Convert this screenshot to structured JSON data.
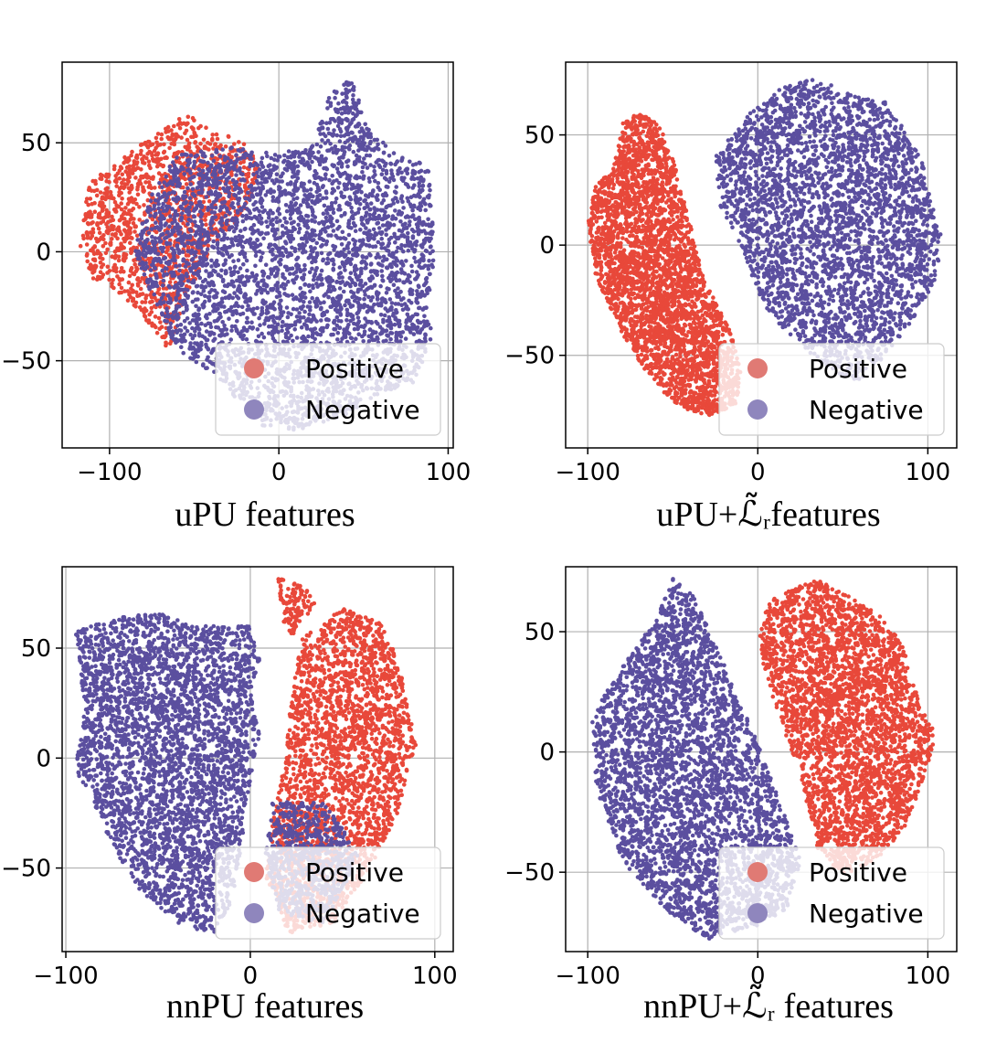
{
  "figure": {
    "point_colors": {
      "positive": "#e8483a",
      "negative": "#5b4f9f"
    },
    "legend_colors": {
      "positive": "#e07a74",
      "negative": "#8f86bd"
    }
  },
  "chart_data": [
    {
      "type": "scatter",
      "xlabel": "uPU features",
      "xlim": [
        -128,
        103
      ],
      "ylim": [
        -90,
        87
      ],
      "xticks": [
        -100,
        0,
        100
      ],
      "xtick_labels": [
        "−100",
        "0",
        "100"
      ],
      "yticks": [
        -50,
        0,
        50
      ],
      "ytick_labels": [
        "−50",
        "0",
        "50"
      ],
      "grid": true,
      "legend": {
        "position": "lower-right",
        "entries": [
          "Positive",
          "Negative"
        ]
      },
      "series": [
        {
          "name": "Positive",
          "regions": [
            [
              [
                -118,
                2
              ],
              [
                -112,
                32
              ],
              [
                -95,
                42
              ],
              [
                -70,
                55
              ],
              [
                -55,
                63
              ],
              [
                -35,
                55
              ],
              [
                -20,
                50
              ],
              [
                -10,
                38
              ],
              [
                -20,
                18
              ],
              [
                -40,
                0
              ],
              [
                -55,
                -20
              ],
              [
                -65,
                -45
              ],
              [
                -80,
                -30
              ],
              [
                -100,
                -15
              ],
              [
                -112,
                -12
              ]
            ]
          ],
          "n": 1400
        },
        {
          "name": "Negative",
          "regions": [
            [
              [
                -80,
                20
              ],
              [
                -60,
                45
              ],
              [
                -30,
                48
              ],
              [
                0,
                45
              ],
              [
                20,
                50
              ],
              [
                30,
                72
              ],
              [
                42,
                80
              ],
              [
                55,
                55
              ],
              [
                70,
                45
              ],
              [
                88,
                40
              ],
              [
                92,
                5
              ],
              [
                90,
                -40
              ],
              [
                80,
                -60
              ],
              [
                60,
                -65
              ],
              [
                40,
                -75
              ],
              [
                10,
                -82
              ],
              [
                -10,
                -80
              ],
              [
                -40,
                -55
              ],
              [
                -60,
                -45
              ],
              [
                -75,
                -20
              ],
              [
                -85,
                0
              ]
            ]
          ],
          "n": 4200
        }
      ]
    },
    {
      "type": "scatter",
      "xlabel": "uPU+ℒ̃ᵣfeatures",
      "xlim": [
        -113,
        117
      ],
      "ylim": [
        -92,
        83
      ],
      "xticks": [
        -100,
        0,
        100
      ],
      "xtick_labels": [
        "−100",
        "0",
        "100"
      ],
      "yticks": [
        -50,
        0,
        50
      ],
      "ytick_labels": [
        "−50",
        "0",
        "50"
      ],
      "grid": true,
      "legend": {
        "position": "lower-right",
        "entries": [
          "Positive",
          "Negative"
        ]
      },
      "series": [
        {
          "name": "Positive",
          "regions": [
            [
              [
                -80,
                55
              ],
              [
                -70,
                60
              ],
              [
                -58,
                55
              ],
              [
                -50,
                40
              ],
              [
                -40,
                10
              ],
              [
                -32,
                -15
              ],
              [
                -18,
                -35
              ],
              [
                -10,
                -55
              ],
              [
                -12,
                -72
              ],
              [
                -30,
                -78
              ],
              [
                -50,
                -72
              ],
              [
                -65,
                -58
              ],
              [
                -80,
                -40
              ],
              [
                -95,
                -15
              ],
              [
                -100,
                10
              ],
              [
                -95,
                28
              ],
              [
                -85,
                35
              ]
            ]
          ],
          "n": 3400
        },
        {
          "name": "Negative",
          "regions": [
            [
              [
                -25,
                40
              ],
              [
                -5,
                60
              ],
              [
                15,
                72
              ],
              [
                35,
                76
              ],
              [
                55,
                68
              ],
              [
                75,
                65
              ],
              [
                95,
                42
              ],
              [
                108,
                5
              ],
              [
                105,
                -15
              ],
              [
                90,
                -35
              ],
              [
                75,
                -50
              ],
              [
                60,
                -62
              ],
              [
                45,
                -58
              ],
              [
                25,
                -45
              ],
              [
                5,
                -30
              ],
              [
                -8,
                -5
              ],
              [
                -22,
                18
              ]
            ]
          ],
          "n": 3400
        }
      ]
    },
    {
      "type": "scatter",
      "xlabel": "nnPU features",
      "xlim": [
        -102,
        110
      ],
      "ylim": [
        -88,
        87
      ],
      "xticks": [
        -100,
        0,
        100
      ],
      "xtick_labels": [
        "−100",
        "0",
        "100"
      ],
      "yticks": [
        -50,
        0,
        50
      ],
      "ytick_labels": [
        "−50",
        "0",
        "50"
      ],
      "grid": true,
      "legend": {
        "position": "lower-right",
        "entries": [
          "Positive",
          "Negative"
        ]
      },
      "series": [
        {
          "name": "Positive",
          "regions": [
            [
              [
                15,
                82
              ],
              [
                30,
                78
              ],
              [
                35,
                70
              ],
              [
                22,
                55
              ],
              [
                18,
                62
              ]
            ],
            [
              [
                28,
                55
              ],
              [
                50,
                68
              ],
              [
                70,
                62
              ],
              [
                80,
                45
              ],
              [
                85,
                25
              ],
              [
                90,
                5
              ],
              [
                80,
                -25
              ],
              [
                65,
                -50
              ],
              [
                45,
                -75
              ],
              [
                20,
                -80
              ],
              [
                8,
                -55
              ],
              [
                12,
                -30
              ],
              [
                18,
                -5
              ],
              [
                22,
                25
              ]
            ]
          ],
          "n": 2600
        },
        {
          "name": "Negative",
          "regions": [
            [
              [
                -95,
                58
              ],
              [
                -70,
                64
              ],
              [
                -50,
                66
              ],
              [
                -30,
                60
              ],
              [
                0,
                60
              ],
              [
                5,
                45
              ],
              [
                0,
                30
              ],
              [
                5,
                10
              ],
              [
                0,
                -10
              ],
              [
                -5,
                -40
              ],
              [
                -10,
                -65
              ],
              [
                -20,
                -80
              ],
              [
                -40,
                -75
              ],
              [
                -60,
                -60
              ],
              [
                -75,
                -40
              ],
              [
                -85,
                -20
              ],
              [
                -95,
                -5
              ],
              [
                -90,
                20
              ],
              [
                -92,
                40
              ]
            ],
            [
              [
                12,
                -20
              ],
              [
                40,
                -20
              ],
              [
                60,
                -45
              ],
              [
                40,
                -75
              ],
              [
                15,
                -70
              ],
              [
                8,
                -45
              ]
            ]
          ],
          "n": 4200
        }
      ]
    },
    {
      "type": "scatter",
      "xlabel": "nnPU+ℒ̃ᵣ features",
      "xlim": [
        -113,
        117
      ],
      "ylim": [
        -83,
        77
      ],
      "xticks": [
        -100,
        0,
        100
      ],
      "xtick_labels": [
        "−100",
        "0",
        "100"
      ],
      "yticks": [
        -50,
        0,
        50
      ],
      "ytick_labels": [
        "−50",
        "0",
        "50"
      ],
      "grid": true,
      "legend": {
        "position": "lower-right",
        "entries": [
          "Positive",
          "Negative"
        ]
      },
      "series": [
        {
          "name": "Negative",
          "regions": [
            [
              [
                -60,
                55
              ],
              [
                -50,
                72
              ],
              [
                -38,
                65
              ],
              [
                -25,
                45
              ],
              [
                -10,
                20
              ],
              [
                5,
                -5
              ],
              [
                15,
                -25
              ],
              [
                25,
                -45
              ],
              [
                18,
                -65
              ],
              [
                0,
                -72
              ],
              [
                -30,
                -78
              ],
              [
                -55,
                -65
              ],
              [
                -80,
                -45
              ],
              [
                -95,
                -15
              ],
              [
                -98,
                15
              ],
              [
                -85,
                30
              ],
              [
                -70,
                45
              ]
            ]
          ],
          "n": 3600
        },
        {
          "name": "Positive",
          "regions": [
            [
              [
                5,
                62
              ],
              [
                20,
                68
              ],
              [
                35,
                72
              ],
              [
                55,
                65
              ],
              [
                70,
                58
              ],
              [
                85,
                45
              ],
              [
                95,
                20
              ],
              [
                105,
                8
              ],
              [
                100,
                -5
              ],
              [
                88,
                -30
              ],
              [
                70,
                -45
              ],
              [
                50,
                -52
              ],
              [
                35,
                -40
              ],
              [
                25,
                -10
              ],
              [
                10,
                20
              ],
              [
                0,
                45
              ]
            ]
          ],
          "n": 3200
        }
      ]
    }
  ]
}
